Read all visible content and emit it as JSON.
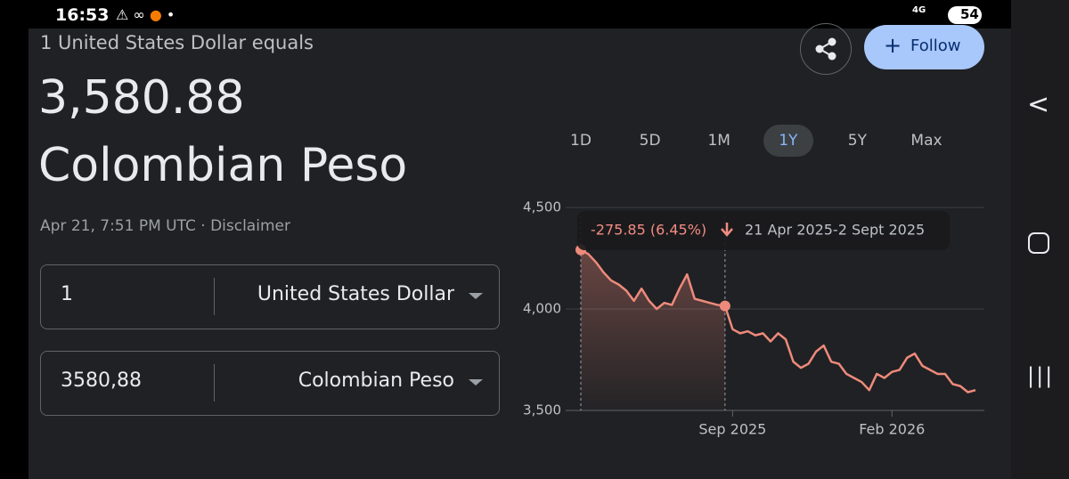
{
  "status_bar": {
    "time": "16:53",
    "network": "4G",
    "battery": "54"
  },
  "header": {
    "subtitle": "1 United States Dollar equals",
    "rate": "3,580.88",
    "currency": "Colombian Peso",
    "timestamp": "Apr 21, 7:51 PM UTC · Disclaimer",
    "follow": "Follow"
  },
  "converter": {
    "rows": [
      {
        "amount": "1",
        "currency": "United States Dollar"
      },
      {
        "amount": "3580,88",
        "currency": "Colombian Peso"
      }
    ]
  },
  "ranges": {
    "options": [
      "1D",
      "5D",
      "1M",
      "1Y",
      "5Y",
      "Max"
    ],
    "selected": 3
  },
  "chart_data": {
    "type": "line",
    "color": "#ee8a7b",
    "categories": [
      null,
      null,
      null,
      null,
      null,
      null,
      null,
      null,
      null,
      null,
      null,
      null,
      null,
      null,
      null,
      null,
      null,
      null,
      null,
      null,
      "Sep 2025",
      null,
      null,
      null,
      null,
      null,
      null,
      null,
      null,
      null,
      null,
      null,
      null,
      null,
      null,
      null,
      null,
      null,
      null,
      null,
      null,
      "Feb 2026",
      null,
      null,
      null,
      null,
      null,
      null,
      null,
      null,
      null,
      null,
      null
    ],
    "values": [
      4291,
      4270,
      4230,
      4180,
      4140,
      4120,
      4090,
      4040,
      4100,
      4040,
      4000,
      4030,
      4020,
      4100,
      4170,
      4050,
      4040,
      4030,
      4020,
      4015,
      3900,
      3880,
      3890,
      3870,
      3880,
      3840,
      3880,
      3850,
      3740,
      3710,
      3730,
      3790,
      3820,
      3740,
      3730,
      3680,
      3660,
      3640,
      3600,
      3680,
      3660,
      3690,
      3700,
      3760,
      3780,
      3720,
      3700,
      3680,
      3680,
      3630,
      3620,
      3590,
      3600
    ],
    "ylim": [
      3500,
      4500
    ],
    "yticks": [
      {
        "value": 3500,
        "label": "3,500"
      },
      {
        "value": 4000,
        "label": "4,000"
      },
      {
        "value": 4500,
        "label": "4,500"
      }
    ],
    "grid": true,
    "highlight_range": [
      0,
      19
    ],
    "annotations": {
      "change": "-275.85 (6.45%)",
      "range": "21 Apr 2025-2 Sept 2025"
    }
  }
}
